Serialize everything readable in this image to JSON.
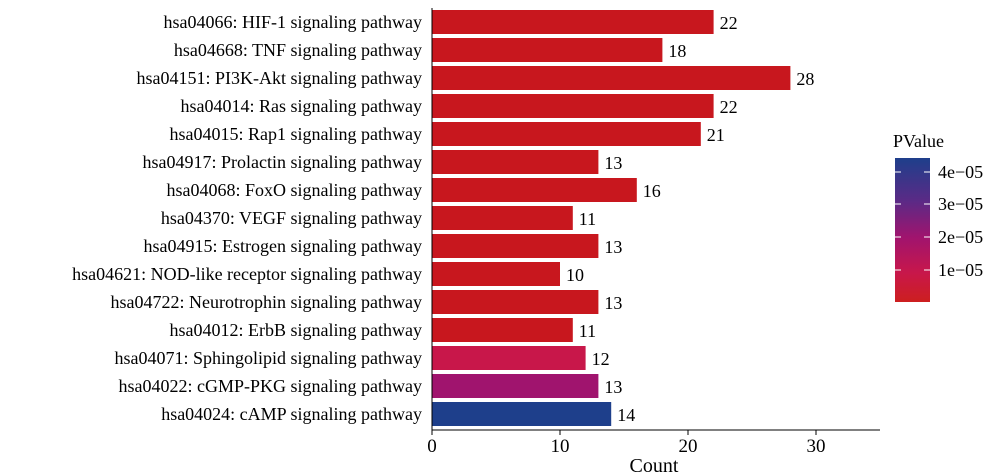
{
  "chart_data": {
    "type": "bar",
    "orientation": "horizontal",
    "xlabel": "Count",
    "xlim": [
      0,
      35
    ],
    "xticks": [
      0,
      10,
      20,
      30
    ],
    "categories": [
      "hsa04066: HIF-1 signaling pathway",
      "hsa04668: TNF signaling pathway",
      "hsa04151: PI3K-Akt signaling pathway",
      "hsa04014: Ras signaling pathway",
      "hsa04015: Rap1 signaling pathway",
      "hsa04917: Prolactin signaling pathway",
      "hsa04068: FoxO signaling pathway",
      "hsa04370: VEGF signaling pathway",
      "hsa04915: Estrogen signaling pathway",
      "hsa04621: NOD-like receptor signaling pathway",
      "hsa04722: Neurotrophin signaling pathway",
      "hsa04012: ErbB signaling pathway",
      "hsa04071: Sphingolipid signaling pathway",
      "hsa04022: cGMP-PKG signaling pathway",
      "hsa04024: cAMP signaling pathway"
    ],
    "values": [
      22,
      18,
      28,
      22,
      21,
      13,
      16,
      11,
      13,
      10,
      13,
      11,
      12,
      13,
      14
    ],
    "value_labels": [
      "22",
      "18",
      "28",
      "22",
      "21",
      "13",
      "16",
      "11",
      "13",
      "10",
      "13",
      "11",
      "12",
      "13",
      "14"
    ],
    "colors": [
      "#C8171E",
      "#C8171E",
      "#C8171E",
      "#C8171E",
      "#C8171E",
      "#C8171E",
      "#C8171E",
      "#C8171E",
      "#C8171E",
      "#C8171E",
      "#C8171E",
      "#C8171E",
      "#C8174A",
      "#A0146E",
      "#1E3F8B"
    ],
    "legend": {
      "title": "PValue",
      "position": "right",
      "ticks": [
        "4e−05",
        "3e−05",
        "2e−05",
        "1e−05"
      ],
      "gradient_top": "#1E3F8B",
      "gradient_mid1": "#5B2A86",
      "gradient_mid2": "#A0146E",
      "gradient_mid3": "#C8174A",
      "gradient_bottom": "#CD1F1F"
    }
  }
}
